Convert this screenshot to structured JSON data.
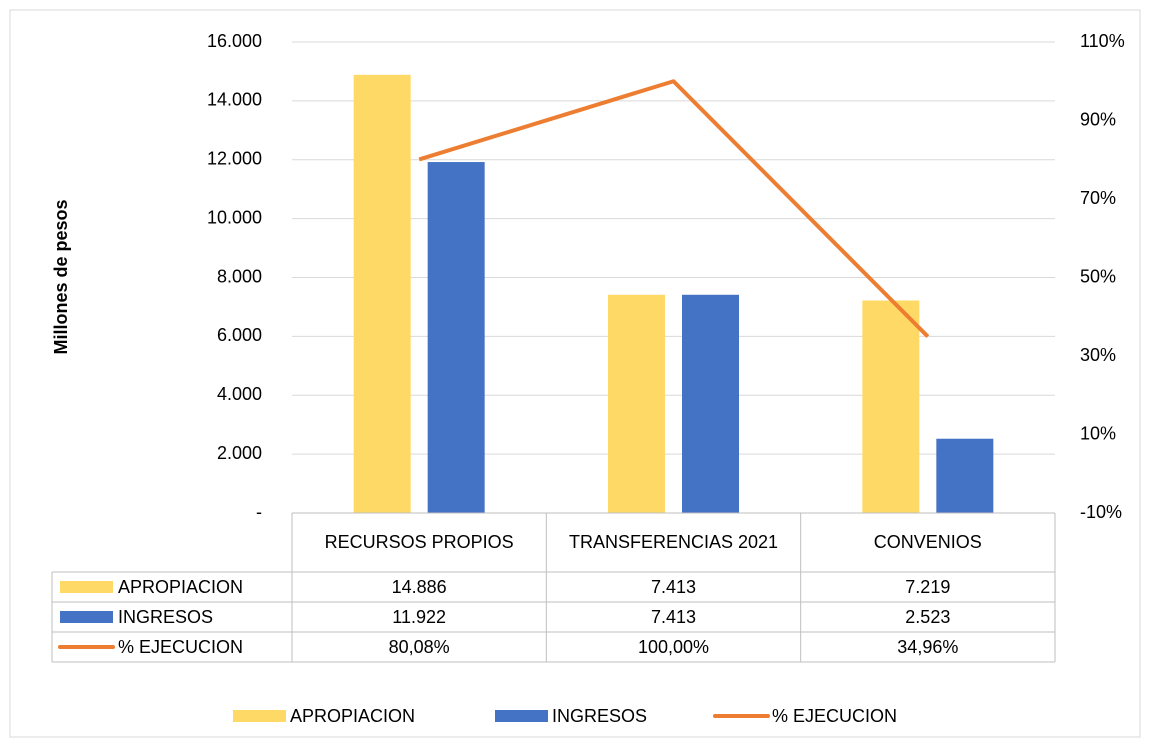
{
  "chart_data": {
    "type": "bar",
    "categories": [
      "RECURSOS PROPIOS",
      "TRANSFERENCIAS 2021",
      "CONVENIOS"
    ],
    "series": [
      {
        "name": "APROPIACION",
        "color": "#ffd966",
        "type": "bar",
        "values": [
          14886,
          7413,
          7219
        ],
        "value_labels": [
          "14.886",
          "7.413",
          "7.219"
        ]
      },
      {
        "name": "INGRESOS",
        "color": "#4472c4",
        "type": "bar",
        "values": [
          11922,
          7413,
          2523
        ],
        "value_labels": [
          "11.922",
          "7.413",
          "2.523"
        ]
      },
      {
        "name": "% EJECUCION",
        "color": "#ed7d31",
        "type": "line",
        "axis": "y2",
        "values": [
          80.08,
          100,
          34.96
        ],
        "value_labels": [
          "80,08%",
          "100,00%",
          "34,96%"
        ]
      }
    ],
    "y_label": "Millones de pesos",
    "ylim": [
      0,
      16000
    ],
    "yticks": [
      {
        "value": 0,
        "label": "-"
      },
      {
        "value": 2000,
        "label": "2.000"
      },
      {
        "value": 4000,
        "label": "4.000"
      },
      {
        "value": 6000,
        "label": "6.000"
      },
      {
        "value": 8000,
        "label": "8.000"
      },
      {
        "value": 10000,
        "label": "10.000"
      },
      {
        "value": 12000,
        "label": "12.000"
      },
      {
        "value": 14000,
        "label": "14.000"
      },
      {
        "value": 16000,
        "label": "16.000"
      }
    ],
    "y2lim": [
      -10,
      110
    ],
    "y2ticks": [
      {
        "value": -10,
        "label": "-10%"
      },
      {
        "value": 10,
        "label": "10%"
      },
      {
        "value": 30,
        "label": "30%"
      },
      {
        "value": 50,
        "label": "50%"
      },
      {
        "value": 70,
        "label": "70%"
      },
      {
        "value": 90,
        "label": "90%"
      },
      {
        "value": 110,
        "label": "110%"
      }
    ],
    "grid": true,
    "legend": "bottom"
  }
}
